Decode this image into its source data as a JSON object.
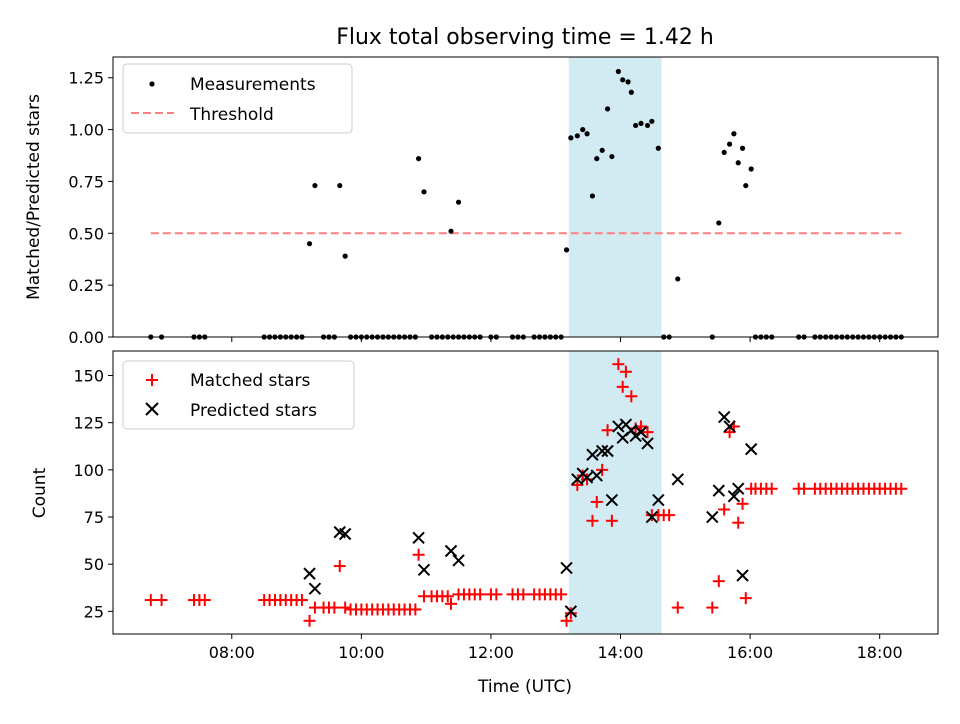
{
  "chart_data": [
    {
      "type": "scatter",
      "title": "Flux total observing time = 1.42 h",
      "ylabel": "Matched/Predicted stars",
      "xlabel": "",
      "xlim": [
        "06:10",
        "18:54"
      ],
      "ylim": [
        0,
        1.35
      ],
      "yticks": [
        "0.00",
        "0.25",
        "0.50",
        "0.75",
        "1.00",
        "1.25"
      ],
      "ytick_values": [
        0,
        0.25,
        0.5,
        0.75,
        1.0,
        1.25
      ],
      "shaded_span": [
        "13:12",
        "14:38"
      ],
      "legend": {
        "placement": "top-left",
        "entries": [
          "Measurements",
          "Threshold"
        ]
      },
      "threshold": {
        "name": "Threshold",
        "value": 0.5,
        "x": [
          "06:45",
          "18:20"
        ],
        "color": "#ff8080"
      },
      "series": [
        {
          "name": "Measurements",
          "color": "#000000",
          "points": [
            [
              "06:45",
              0
            ],
            [
              "06:55",
              0
            ],
            [
              "07:25",
              0
            ],
            [
              "07:30",
              0
            ],
            [
              "07:35",
              0
            ],
            [
              "08:30",
              0
            ],
            [
              "08:35",
              0
            ],
            [
              "08:40",
              0
            ],
            [
              "08:45",
              0
            ],
            [
              "08:50",
              0
            ],
            [
              "08:55",
              0
            ],
            [
              "09:00",
              0
            ],
            [
              "09:05",
              0
            ],
            [
              "09:12",
              0.45
            ],
            [
              "09:17",
              0.73
            ],
            [
              "09:25",
              0
            ],
            [
              "09:30",
              0
            ],
            [
              "09:35",
              0
            ],
            [
              "09:40",
              0.73
            ],
            [
              "09:45",
              0.39
            ],
            [
              "09:50",
              0
            ],
            [
              "09:55",
              0
            ],
            [
              "10:00",
              0
            ],
            [
              "10:05",
              0
            ],
            [
              "10:10",
              0
            ],
            [
              "10:15",
              0
            ],
            [
              "10:20",
              0
            ],
            [
              "10:25",
              0
            ],
            [
              "10:30",
              0
            ],
            [
              "10:35",
              0
            ],
            [
              "10:40",
              0
            ],
            [
              "10:45",
              0
            ],
            [
              "10:50",
              0
            ],
            [
              "10:53",
              0.86
            ],
            [
              "10:58",
              0.7
            ],
            [
              "11:05",
              0
            ],
            [
              "11:10",
              0
            ],
            [
              "11:15",
              0
            ],
            [
              "11:20",
              0
            ],
            [
              "11:25",
              0
            ],
            [
              "11:30",
              0
            ],
            [
              "11:23",
              0.51
            ],
            [
              "11:30",
              0.65
            ],
            [
              "11:35",
              0
            ],
            [
              "11:40",
              0
            ],
            [
              "11:45",
              0
            ],
            [
              "11:50",
              0
            ],
            [
              "12:00",
              0
            ],
            [
              "12:05",
              0
            ],
            [
              "12:20",
              0
            ],
            [
              "12:25",
              0
            ],
            [
              "12:30",
              0
            ],
            [
              "12:40",
              0
            ],
            [
              "12:45",
              0
            ],
            [
              "12:50",
              0
            ],
            [
              "12:55",
              0
            ],
            [
              "13:00",
              0
            ],
            [
              "13:05",
              0
            ],
            [
              "13:10",
              0.42
            ],
            [
              "13:14",
              0.96
            ],
            [
              "13:20",
              0.97
            ],
            [
              "13:25",
              1.0
            ],
            [
              "13:29",
              0.98
            ],
            [
              "13:34",
              0.68
            ],
            [
              "13:38",
              0.86
            ],
            [
              "13:43",
              0.9
            ],
            [
              "13:48",
              1.1
            ],
            [
              "13:52",
              0.87
            ],
            [
              "13:58",
              1.28
            ],
            [
              "14:02",
              1.24
            ],
            [
              "14:07",
              1.23
            ],
            [
              "14:10",
              1.18
            ],
            [
              "14:14",
              1.02
            ],
            [
              "14:19",
              1.03
            ],
            [
              "14:25",
              1.02
            ],
            [
              "14:29",
              1.04
            ],
            [
              "14:35",
              0.91
            ],
            [
              "14:40",
              0
            ],
            [
              "14:45",
              0
            ],
            [
              "14:53",
              0.28
            ],
            [
              "15:25",
              0
            ],
            [
              "15:31",
              0.55
            ],
            [
              "15:36",
              0.89
            ],
            [
              "15:41",
              0.93
            ],
            [
              "15:45",
              0.98
            ],
            [
              "15:49",
              0.84
            ],
            [
              "15:53",
              0.91
            ],
            [
              "15:56",
              0.73
            ],
            [
              "16:01",
              0.81
            ],
            [
              "16:05",
              0
            ],
            [
              "16:10",
              0
            ],
            [
              "16:15",
              0
            ],
            [
              "16:20",
              0
            ],
            [
              "16:45",
              0
            ],
            [
              "16:50",
              0
            ],
            [
              "17:00",
              0
            ],
            [
              "17:05",
              0
            ],
            [
              "17:10",
              0
            ],
            [
              "17:15",
              0
            ],
            [
              "17:20",
              0
            ],
            [
              "17:25",
              0
            ],
            [
              "17:30",
              0
            ],
            [
              "17:35",
              0
            ],
            [
              "17:40",
              0
            ],
            [
              "17:45",
              0
            ],
            [
              "17:50",
              0
            ],
            [
              "17:55",
              0
            ],
            [
              "18:00",
              0
            ],
            [
              "18:05",
              0
            ],
            [
              "18:10",
              0
            ],
            [
              "18:15",
              0
            ],
            [
              "18:20",
              0
            ]
          ]
        }
      ]
    },
    {
      "type": "scatter",
      "title": "",
      "ylabel": "Count",
      "xlabel": "Time (UTC)",
      "xlim": [
        "06:10",
        "18:54"
      ],
      "ylim": [
        13,
        163
      ],
      "yticks": [
        "25",
        "50",
        "75",
        "100",
        "125",
        "150"
      ],
      "ytick_values": [
        25,
        50,
        75,
        100,
        125,
        150
      ],
      "xticks": [
        "08:00",
        "10:00",
        "12:00",
        "14:00",
        "16:00",
        "18:00"
      ],
      "shaded_span": [
        "13:12",
        "14:38"
      ],
      "legend": {
        "placement": "top-left",
        "entries": [
          "Matched stars",
          "Predicted stars"
        ]
      },
      "series": [
        {
          "name": "Matched stars",
          "marker": "plus",
          "color": "#ff0000",
          "points": [
            [
              "06:45",
              31
            ],
            [
              "06:55",
              31
            ],
            [
              "07:25",
              31
            ],
            [
              "07:30",
              31
            ],
            [
              "07:35",
              31
            ],
            [
              "08:30",
              31
            ],
            [
              "08:35",
              31
            ],
            [
              "08:40",
              31
            ],
            [
              "08:45",
              31
            ],
            [
              "08:50",
              31
            ],
            [
              "08:55",
              31
            ],
            [
              "09:00",
              31
            ],
            [
              "09:05",
              31
            ],
            [
              "09:12",
              20
            ],
            [
              "09:17",
              27
            ],
            [
              "09:25",
              27
            ],
            [
              "09:30",
              27
            ],
            [
              "09:35",
              27
            ],
            [
              "09:40",
              49
            ],
            [
              "09:45",
              27
            ],
            [
              "09:50",
              26
            ],
            [
              "09:55",
              26
            ],
            [
              "10:00",
              26
            ],
            [
              "10:05",
              26
            ],
            [
              "10:10",
              26
            ],
            [
              "10:15",
              26
            ],
            [
              "10:20",
              26
            ],
            [
              "10:25",
              26
            ],
            [
              "10:30",
              26
            ],
            [
              "10:35",
              26
            ],
            [
              "10:40",
              26
            ],
            [
              "10:45",
              26
            ],
            [
              "10:50",
              26
            ],
            [
              "10:53",
              55
            ],
            [
              "10:58",
              33
            ],
            [
              "11:05",
              33
            ],
            [
              "11:10",
              33
            ],
            [
              "11:15",
              33
            ],
            [
              "11:20",
              33
            ],
            [
              "11:23",
              29
            ],
            [
              "11:30",
              34
            ],
            [
              "11:35",
              34
            ],
            [
              "11:40",
              34
            ],
            [
              "11:45",
              34
            ],
            [
              "11:50",
              34
            ],
            [
              "12:00",
              34
            ],
            [
              "12:05",
              34
            ],
            [
              "12:20",
              34
            ],
            [
              "12:25",
              34
            ],
            [
              "12:30",
              34
            ],
            [
              "12:40",
              34
            ],
            [
              "12:45",
              34
            ],
            [
              "12:50",
              34
            ],
            [
              "12:55",
              34
            ],
            [
              "13:00",
              34
            ],
            [
              "13:05",
              34
            ],
            [
              "13:10",
              20
            ],
            [
              "13:14",
              24
            ],
            [
              "13:20",
              92
            ],
            [
              "13:25",
              97
            ],
            [
              "13:29",
              95
            ],
            [
              "13:34",
              73
            ],
            [
              "13:38",
              83
            ],
            [
              "13:43",
              100
            ],
            [
              "13:48",
              121
            ],
            [
              "13:52",
              73
            ],
            [
              "13:58",
              156
            ],
            [
              "14:02",
              144
            ],
            [
              "14:05",
              152
            ],
            [
              "14:10",
              139
            ],
            [
              "14:14",
              122
            ],
            [
              "14:19",
              123
            ],
            [
              "14:25",
              120
            ],
            [
              "14:29",
              76
            ],
            [
              "14:35",
              76
            ],
            [
              "14:40",
              76
            ],
            [
              "14:45",
              76
            ],
            [
              "14:53",
              27
            ],
            [
              "15:25",
              27
            ],
            [
              "15:31",
              41
            ],
            [
              "15:36",
              79
            ],
            [
              "15:41",
              120
            ],
            [
              "15:45",
              123
            ],
            [
              "15:49",
              72
            ],
            [
              "15:53",
              82
            ],
            [
              "15:56",
              32
            ],
            [
              "16:01",
              90
            ],
            [
              "16:05",
              90
            ],
            [
              "16:10",
              90
            ],
            [
              "16:15",
              90
            ],
            [
              "16:20",
              90
            ],
            [
              "16:45",
              90
            ],
            [
              "16:50",
              90
            ],
            [
              "17:00",
              90
            ],
            [
              "17:05",
              90
            ],
            [
              "17:10",
              90
            ],
            [
              "17:15",
              90
            ],
            [
              "17:20",
              90
            ],
            [
              "17:25",
              90
            ],
            [
              "17:30",
              90
            ],
            [
              "17:35",
              90
            ],
            [
              "17:40",
              90
            ],
            [
              "17:45",
              90
            ],
            [
              "17:50",
              90
            ],
            [
              "17:55",
              90
            ],
            [
              "18:00",
              90
            ],
            [
              "18:05",
              90
            ],
            [
              "18:10",
              90
            ],
            [
              "18:15",
              90
            ],
            [
              "18:20",
              90
            ]
          ]
        },
        {
          "name": "Predicted stars",
          "marker": "x",
          "color": "#000000",
          "points": [
            [
              "09:12",
              45
            ],
            [
              "09:17",
              37
            ],
            [
              "09:40",
              67
            ],
            [
              "09:45",
              66
            ],
            [
              "10:53",
              64
            ],
            [
              "10:58",
              47
            ],
            [
              "11:23",
              57
            ],
            [
              "11:30",
              52
            ],
            [
              "13:10",
              48
            ],
            [
              "13:14",
              25
            ],
            [
              "13:20",
              95
            ],
            [
              "13:25",
              98
            ],
            [
              "13:29",
              96
            ],
            [
              "13:34",
              108
            ],
            [
              "13:38",
              97
            ],
            [
              "13:43",
              110
            ],
            [
              "13:48",
              110
            ],
            [
              "13:52",
              84
            ],
            [
              "13:58",
              123
            ],
            [
              "14:02",
              117
            ],
            [
              "14:05",
              124
            ],
            [
              "14:10",
              121
            ],
            [
              "14:14",
              118
            ],
            [
              "14:19",
              120
            ],
            [
              "14:25",
              114
            ],
            [
              "14:29",
              75
            ],
            [
              "14:35",
              84
            ],
            [
              "14:53",
              95
            ],
            [
              "15:25",
              75
            ],
            [
              "15:31",
              89
            ],
            [
              "15:36",
              128
            ],
            [
              "15:41",
              123
            ],
            [
              "15:45",
              86
            ],
            [
              "15:49",
              90
            ],
            [
              "15:53",
              44
            ],
            [
              "16:01",
              111
            ]
          ]
        }
      ]
    }
  ]
}
